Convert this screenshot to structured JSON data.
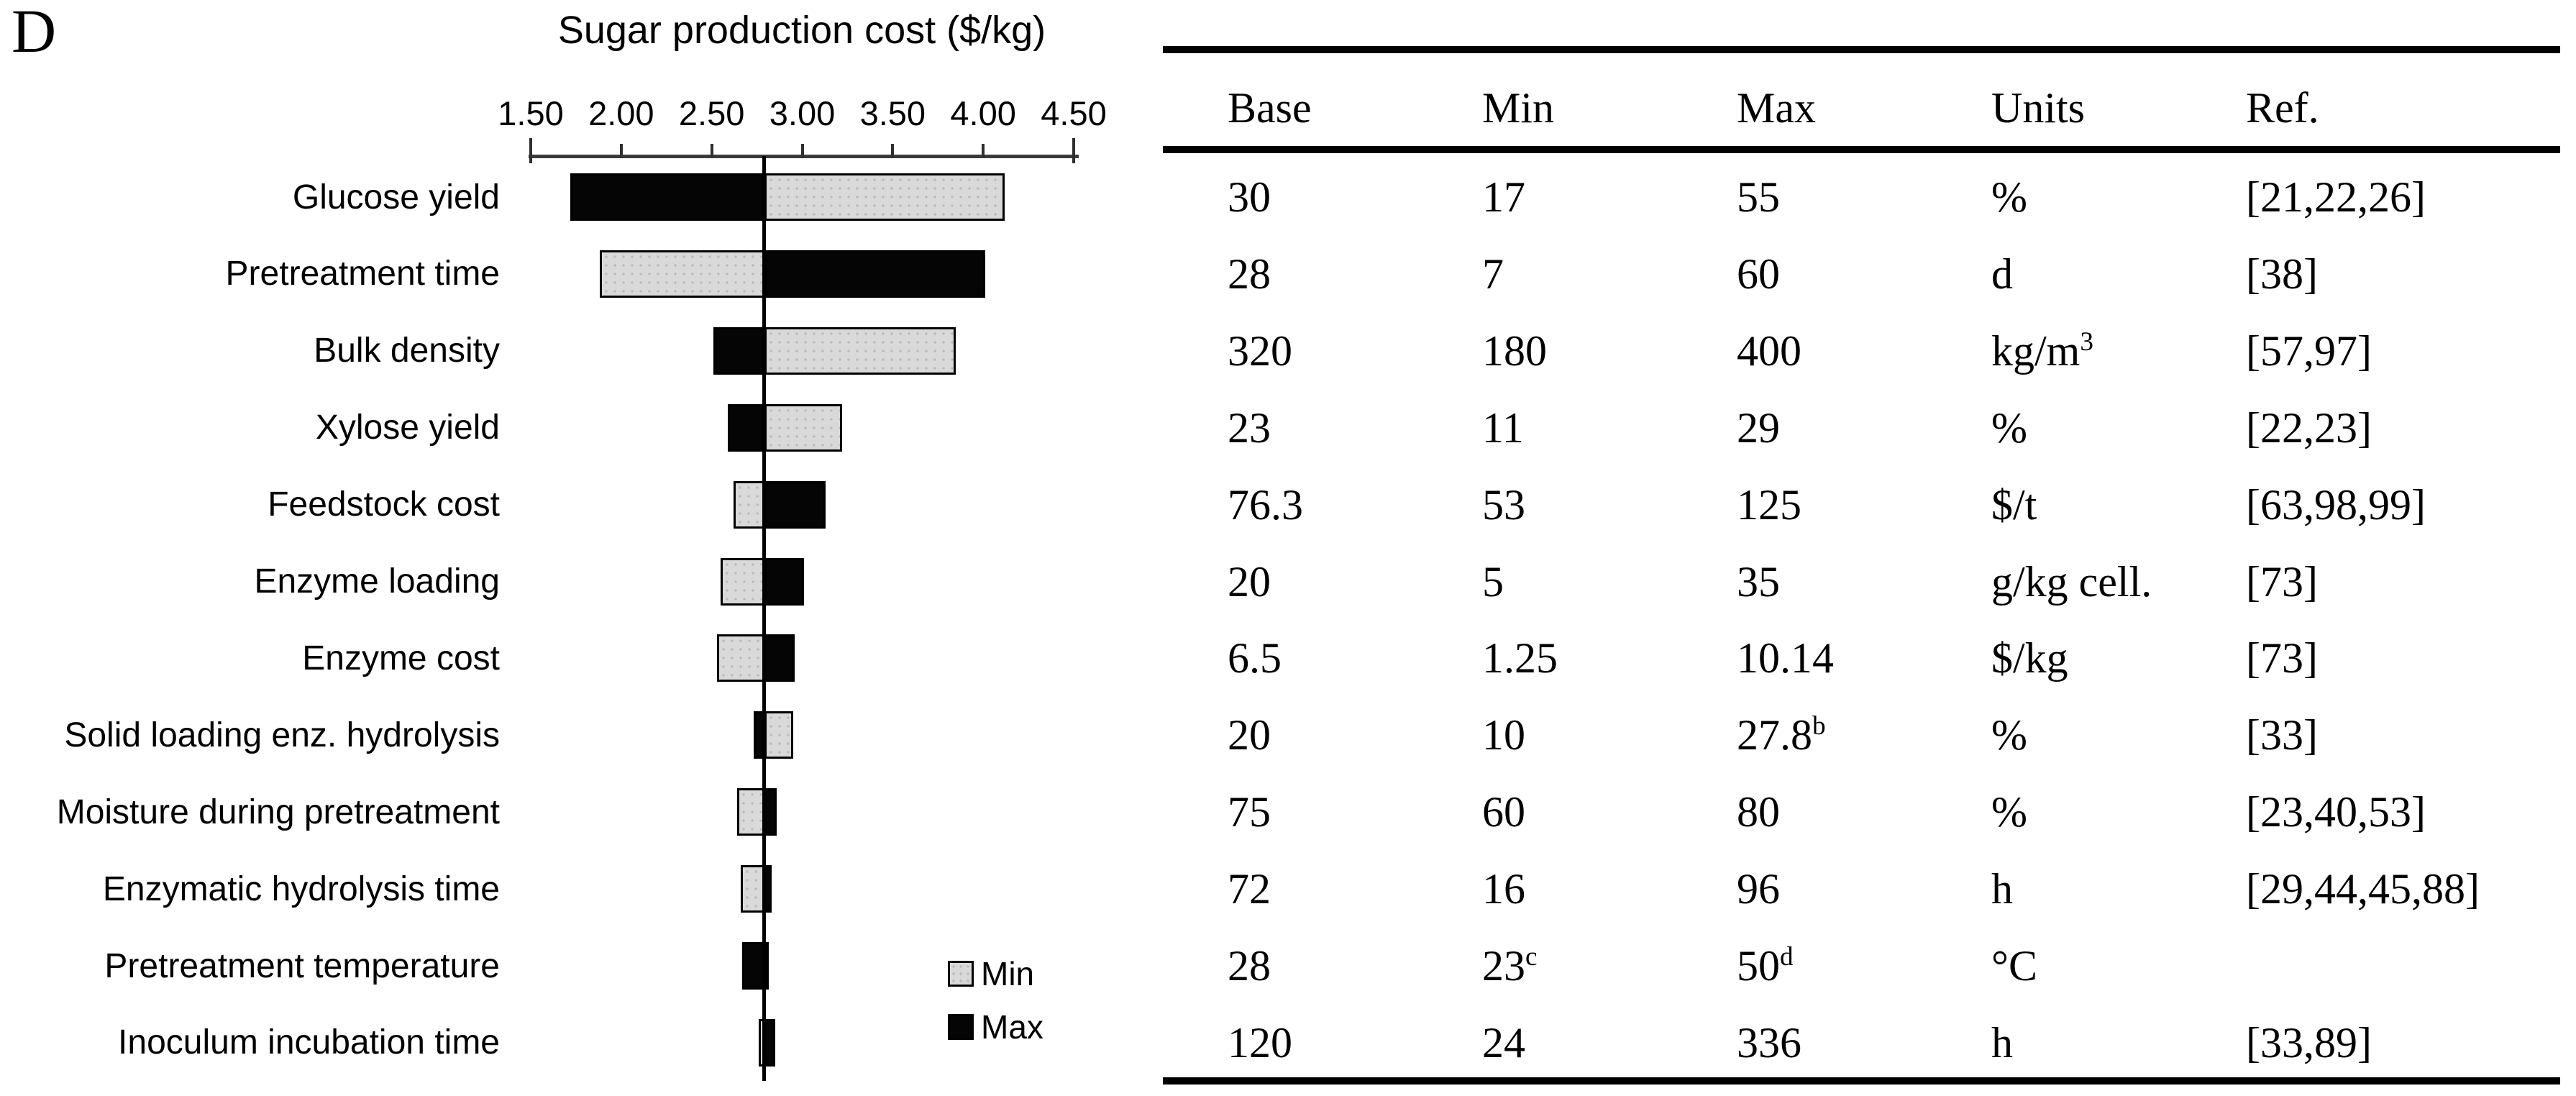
{
  "figure_label": "D",
  "chart_data": {
    "type": "bar",
    "variant": "tornado-sensitivity",
    "title": "Sugar production cost ($/kg)",
    "xlabel": "Sugar production cost ($/kg)",
    "xlim": [
      1.5,
      4.5
    ],
    "x_tick_values": [
      1.5,
      2.0,
      2.5,
      3.0,
      3.5,
      4.0,
      4.5
    ],
    "x_tick_labels": [
      "1.50",
      "2.00",
      "2.50",
      "3.00",
      "3.50",
      "4.00",
      "4.50"
    ],
    "base_value": 2.79,
    "grid": false,
    "legend_position": "bottom-right-inside",
    "legend": [
      {
        "label": "Min",
        "color": "#d9d9d9"
      },
      {
        "label": "Max",
        "color": "#000000"
      }
    ],
    "rows": [
      {
        "label": "Glucose yield",
        "min_cost": 4.12,
        "max_cost": 1.72
      },
      {
        "label": "Pretreatment time",
        "min_cost": 1.88,
        "max_cost": 4.01
      },
      {
        "label": "Bulk density",
        "min_cost": 3.85,
        "max_cost": 2.51
      },
      {
        "label": "Xylose yield",
        "min_cost": 3.22,
        "max_cost": 2.59
      },
      {
        "label": "Feedstock cost",
        "min_cost": 2.62,
        "max_cost": 3.13
      },
      {
        "label": "Enzyme loading",
        "min_cost": 2.55,
        "max_cost": 3.01
      },
      {
        "label": "Enzyme cost",
        "min_cost": 2.53,
        "max_cost": 2.96
      },
      {
        "label": "Solid loading enz. hydrolysis",
        "min_cost": 2.95,
        "max_cost": 2.73
      },
      {
        "label": "Moisture during pretreatment",
        "min_cost": 2.64,
        "max_cost": 2.86
      },
      {
        "label": "Enzymatic hydrolysis time",
        "min_cost": 2.66,
        "max_cost": 2.83
      },
      {
        "label": "Pretreatment temperature",
        "min_cost": 2.81,
        "max_cost": 2.67
      },
      {
        "label": "Inoculum incubation time",
        "min_cost": 2.76,
        "max_cost": 2.85
      }
    ]
  },
  "table": {
    "headers": [
      "Base",
      "Min",
      "Max",
      "Units",
      "Ref."
    ],
    "rows": [
      {
        "base": "30",
        "min": "17",
        "max": "55",
        "units": "%",
        "ref": "[21,22,26]"
      },
      {
        "base": "28",
        "min": "7",
        "max": "60",
        "units": "d",
        "ref": "[38]"
      },
      {
        "base": "320",
        "min": "180",
        "max": "400",
        "units": {
          "text": "kg/m",
          "sup": "3"
        },
        "ref": "[57,97]"
      },
      {
        "base": "23",
        "min": "11",
        "max": "29",
        "units": "%",
        "ref": "[22,23]"
      },
      {
        "base": "76.3",
        "min": "53",
        "max": "125",
        "units": "$/t",
        "ref": "[63,98,99]"
      },
      {
        "base": "20",
        "min": "5",
        "max": "35",
        "units": "g/kg cell.",
        "ref": "[73]"
      },
      {
        "base": "6.5",
        "min": "1.25",
        "max": "10.14",
        "units": "$/kg",
        "ref": "[73]"
      },
      {
        "base": "20",
        "min": "10",
        "max": {
          "text": "27.8",
          "sup": "b"
        },
        "units": "%",
        "ref": "[33]"
      },
      {
        "base": "75",
        "min": "60",
        "max": "80",
        "units": "%",
        "ref": "[23,40,53]"
      },
      {
        "base": "72",
        "min": "16",
        "max": "96",
        "units": "h",
        "ref": "[29,44,45,88]"
      },
      {
        "base": "28",
        "min": {
          "text": "23",
          "sup": "c"
        },
        "max": {
          "text": "50",
          "sup": "d"
        },
        "units": "°C",
        "ref": ""
      },
      {
        "base": "120",
        "min": "24",
        "max": "336",
        "units": "h",
        "ref": "[33,89]"
      }
    ]
  }
}
